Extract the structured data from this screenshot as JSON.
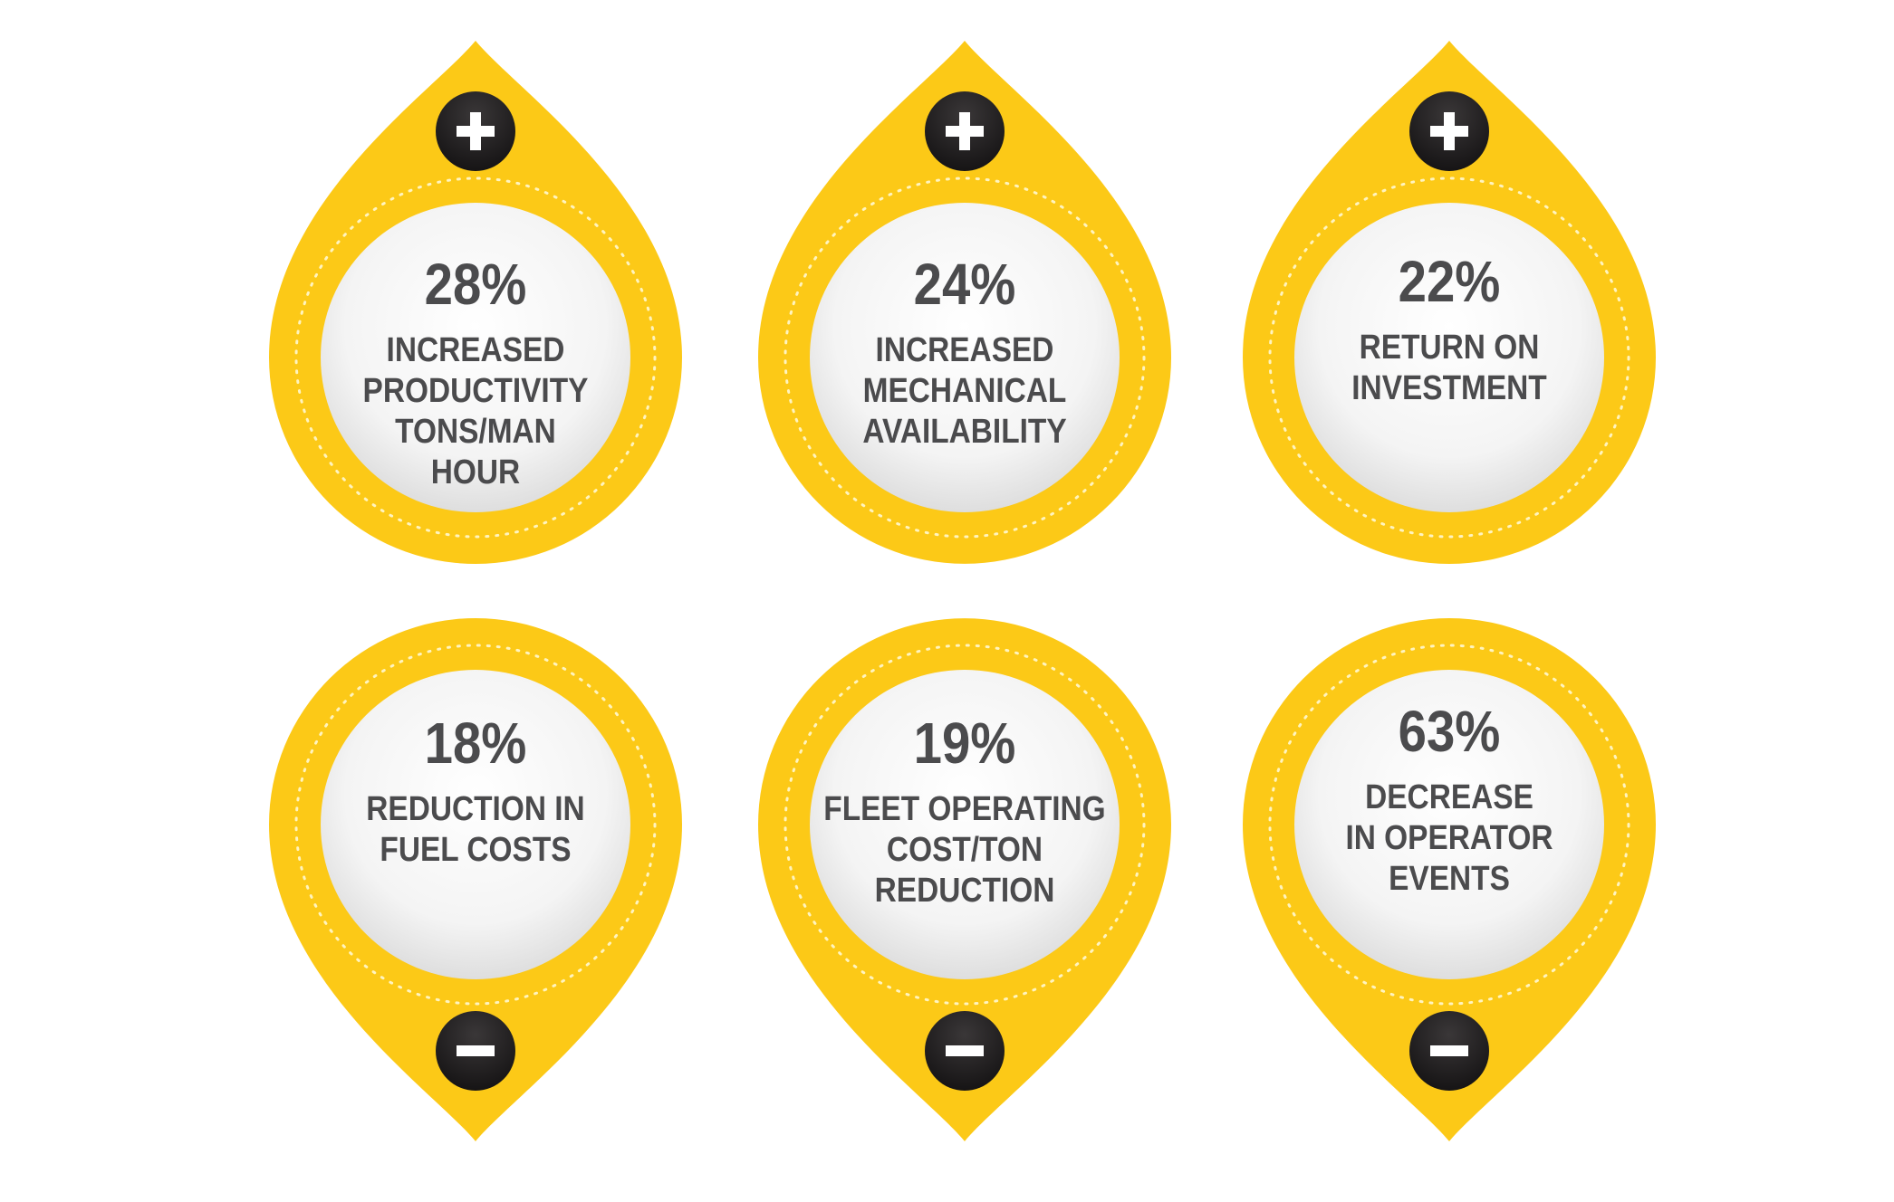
{
  "colors": {
    "drop": "#fcc917",
    "button": "#231f20",
    "text": "#4b4b4d",
    "circle": "#f7f7f7"
  },
  "cards": [
    {
      "value": "28%",
      "lines": [
        "INCREASED",
        "PRODUCTIVITY",
        "TONS/MAN",
        "HOUR"
      ],
      "icon": "plus-icon"
    },
    {
      "value": "24%",
      "lines": [
        "INCREASED",
        "MECHANICAL",
        "AVAILABILITY"
      ],
      "icon": "plus-icon"
    },
    {
      "value": "22%",
      "lines": [
        "RETURN ON",
        "INVESTMENT"
      ],
      "icon": "plus-icon"
    },
    {
      "value": "18%",
      "lines": [
        "REDUCTION IN",
        "FUEL COSTS"
      ],
      "icon": "minus-icon"
    },
    {
      "value": "19%",
      "lines": [
        "FLEET OPERATING",
        "COST/TON",
        "REDUCTION"
      ],
      "icon": "minus-icon"
    },
    {
      "value": "63%",
      "lines": [
        "DECREASE",
        "IN OPERATOR",
        "EVENTS"
      ],
      "icon": "minus-icon"
    }
  ]
}
